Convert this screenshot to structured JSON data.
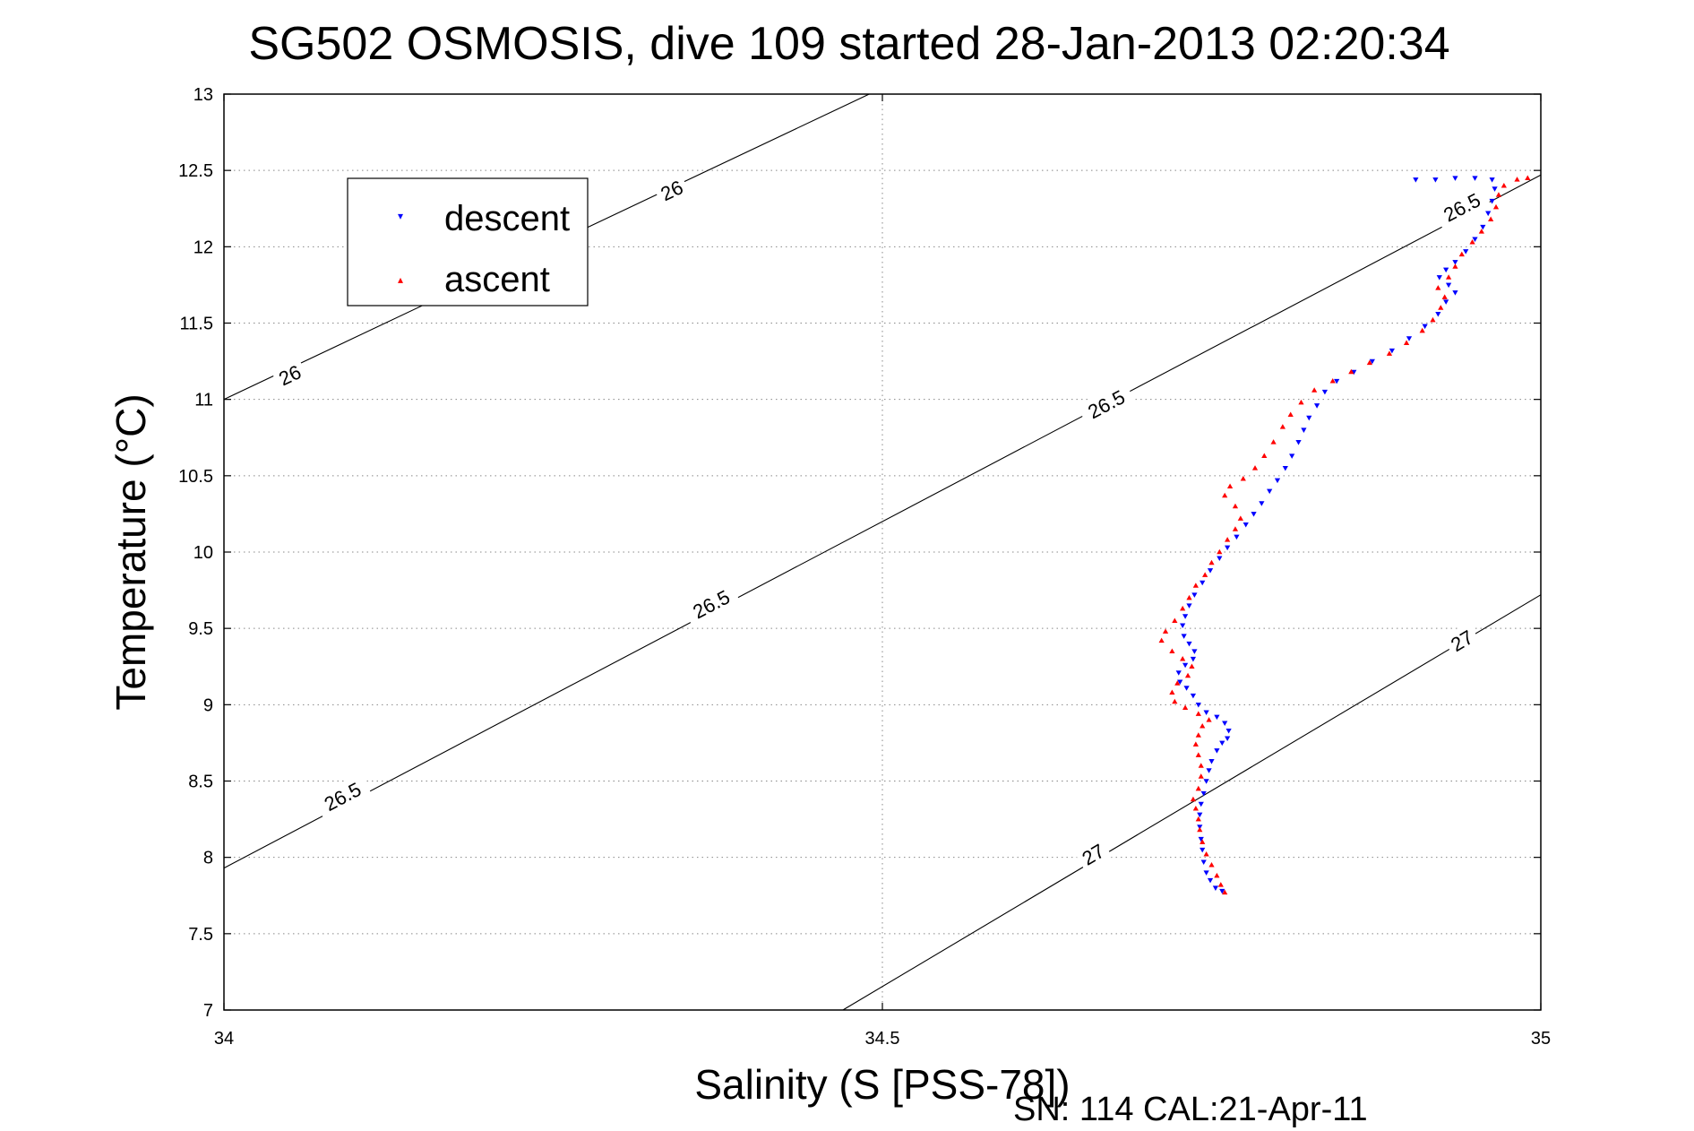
{
  "chart_data": {
    "type": "scatter",
    "title": "SG502 OSMOSIS, dive 109 started 28-Jan-2013 02:20:34",
    "xlabel": "Salinity (S [PSS-78])",
    "ylabel": "Temperature (°C)",
    "xlim": [
      34,
      35
    ],
    "ylim": [
      7,
      13
    ],
    "xticks": [
      "34",
      "34.5",
      "35"
    ],
    "yticks": [
      "7",
      "7.5",
      "8",
      "8.5",
      "9",
      "9.5",
      "10",
      "10.5",
      "11",
      "11.5",
      "12",
      "12.5",
      "13"
    ],
    "grid": true,
    "legend_position": "top-left",
    "footer": "SN: 114  CAL:21-Apr-11",
    "colors": {
      "descent": "#0000ff",
      "ascent": "#ff0000",
      "contour": "#000000",
      "grid": "#888888"
    },
    "contours": [
      {
        "label": "26",
        "x": [
          34.0,
          34.49
        ],
        "y": [
          11.0,
          13.0
        ],
        "label_points": [
          [
            34.05,
            11.16
          ],
          [
            34.34,
            12.37
          ]
        ]
      },
      {
        "label": "26.5",
        "x": [
          34.0,
          35.0
        ],
        "y": [
          7.93,
          12.47
        ],
        "label_points": [
          [
            34.09,
            8.4
          ],
          [
            34.37,
            9.66
          ],
          [
            34.67,
            10.97
          ],
          [
            34.94,
            12.26
          ]
        ]
      },
      {
        "label": "27",
        "x": [
          34.47,
          35.0
        ],
        "y": [
          7.0,
          9.72
        ],
        "label_points": [
          [
            34.66,
            8.02
          ],
          [
            34.94,
            9.42
          ]
        ]
      }
    ],
    "series": [
      {
        "name": "descent",
        "marker": "▾",
        "points": [
          [
            34.758,
            7.78
          ],
          [
            34.753,
            7.8
          ],
          [
            34.749,
            7.85
          ],
          [
            34.746,
            7.9
          ],
          [
            34.744,
            7.97
          ],
          [
            34.743,
            8.05
          ],
          [
            34.742,
            8.12
          ],
          [
            34.741,
            8.2
          ],
          [
            34.741,
            8.28
          ],
          [
            34.742,
            8.35
          ],
          [
            34.744,
            8.42
          ],
          [
            34.746,
            8.5
          ],
          [
            34.748,
            8.57
          ],
          [
            34.75,
            8.63
          ],
          [
            34.754,
            8.7
          ],
          [
            34.758,
            8.75
          ],
          [
            34.762,
            8.78
          ],
          [
            34.763,
            8.83
          ],
          [
            34.76,
            8.88
          ],
          [
            34.754,
            8.92
          ],
          [
            34.746,
            8.95
          ],
          [
            34.74,
            9.0
          ],
          [
            34.736,
            9.06
          ],
          [
            34.731,
            9.11
          ],
          [
            34.726,
            9.15
          ],
          [
            34.725,
            9.21
          ],
          [
            34.73,
            9.26
          ],
          [
            34.736,
            9.3
          ],
          [
            34.737,
            9.35
          ],
          [
            34.733,
            9.4
          ],
          [
            34.729,
            9.45
          ],
          [
            34.728,
            9.52
          ],
          [
            34.73,
            9.58
          ],
          [
            34.733,
            9.65
          ],
          [
            34.737,
            9.72
          ],
          [
            34.743,
            9.8
          ],
          [
            34.749,
            9.88
          ],
          [
            34.756,
            9.96
          ],
          [
            34.762,
            10.03
          ],
          [
            34.769,
            10.1
          ],
          [
            34.776,
            10.18
          ],
          [
            34.782,
            10.25
          ],
          [
            34.788,
            10.32
          ],
          [
            34.794,
            10.4
          ],
          [
            34.8,
            10.47
          ],
          [
            34.806,
            10.55
          ],
          [
            34.811,
            10.63
          ],
          [
            34.816,
            10.72
          ],
          [
            34.82,
            10.8
          ],
          [
            34.824,
            10.88
          ],
          [
            34.83,
            10.96
          ],
          [
            34.836,
            11.05
          ],
          [
            34.845,
            11.12
          ],
          [
            34.858,
            11.18
          ],
          [
            34.872,
            11.25
          ],
          [
            34.887,
            11.32
          ],
          [
            34.9,
            11.4
          ],
          [
            34.912,
            11.48
          ],
          [
            34.922,
            11.56
          ],
          [
            34.928,
            11.64
          ],
          [
            34.935,
            11.7
          ],
          [
            34.93,
            11.75
          ],
          [
            34.923,
            11.8
          ],
          [
            34.928,
            11.85
          ],
          [
            34.935,
            11.9
          ],
          [
            34.943,
            11.97
          ],
          [
            34.95,
            12.05
          ],
          [
            34.956,
            12.13
          ],
          [
            34.96,
            12.22
          ],
          [
            34.963,
            12.3
          ],
          [
            34.965,
            12.38
          ],
          [
            34.963,
            12.44
          ],
          [
            34.95,
            12.45
          ],
          [
            34.935,
            12.45
          ],
          [
            34.92,
            12.44
          ],
          [
            34.905,
            12.44
          ]
        ]
      },
      {
        "name": "ascent",
        "marker": "▴",
        "points": [
          [
            34.76,
            7.77
          ],
          [
            34.757,
            7.82
          ],
          [
            34.754,
            7.88
          ],
          [
            34.75,
            7.95
          ],
          [
            34.746,
            8.02
          ],
          [
            34.743,
            8.1
          ],
          [
            34.741,
            8.18
          ],
          [
            34.74,
            8.25
          ],
          [
            34.738,
            8.32
          ],
          [
            34.736,
            8.38
          ],
          [
            34.74,
            8.45
          ],
          [
            34.742,
            8.53
          ],
          [
            34.742,
            8.6
          ],
          [
            34.74,
            8.67
          ],
          [
            34.738,
            8.74
          ],
          [
            34.74,
            8.8
          ],
          [
            34.743,
            8.86
          ],
          [
            34.748,
            8.9
          ],
          [
            34.74,
            8.94
          ],
          [
            34.73,
            8.98
          ],
          [
            34.722,
            9.02
          ],
          [
            34.72,
            9.08
          ],
          [
            34.724,
            9.14
          ],
          [
            34.732,
            9.19
          ],
          [
            34.735,
            9.25
          ],
          [
            34.728,
            9.3
          ],
          [
            34.72,
            9.35
          ],
          [
            34.712,
            9.42
          ],
          [
            34.715,
            9.48
          ],
          [
            34.722,
            9.55
          ],
          [
            34.728,
            9.63
          ],
          [
            34.733,
            9.7
          ],
          [
            34.738,
            9.78
          ],
          [
            34.745,
            9.85
          ],
          [
            34.75,
            9.93
          ],
          [
            34.756,
            10.0
          ],
          [
            34.762,
            10.08
          ],
          [
            34.768,
            10.15
          ],
          [
            34.772,
            10.22
          ],
          [
            34.768,
            10.3
          ],
          [
            34.76,
            10.37
          ],
          [
            34.764,
            10.43
          ],
          [
            34.774,
            10.48
          ],
          [
            34.783,
            10.55
          ],
          [
            34.79,
            10.63
          ],
          [
            34.797,
            10.72
          ],
          [
            34.804,
            10.82
          ],
          [
            34.81,
            10.9
          ],
          [
            34.818,
            10.98
          ],
          [
            34.828,
            11.06
          ],
          [
            34.842,
            11.12
          ],
          [
            34.856,
            11.18
          ],
          [
            34.87,
            11.24
          ],
          [
            34.885,
            11.3
          ],
          [
            34.898,
            11.37
          ],
          [
            34.91,
            11.45
          ],
          [
            34.918,
            11.52
          ],
          [
            34.924,
            11.6
          ],
          [
            34.927,
            11.67
          ],
          [
            34.922,
            11.73
          ],
          [
            34.93,
            11.8
          ],
          [
            34.935,
            11.87
          ],
          [
            34.94,
            11.95
          ],
          [
            34.948,
            12.03
          ],
          [
            34.955,
            12.1
          ],
          [
            34.962,
            12.18
          ],
          [
            34.966,
            12.26
          ],
          [
            34.968,
            12.34
          ],
          [
            34.972,
            12.4
          ],
          [
            34.982,
            12.44
          ],
          [
            34.99,
            12.45
          ]
        ]
      }
    ]
  }
}
